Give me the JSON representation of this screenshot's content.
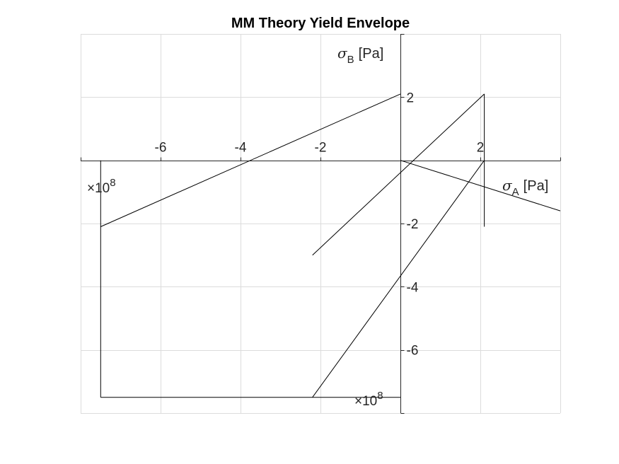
{
  "chart_data": {
    "type": "line",
    "title": "MM Theory Yield Envelope",
    "xlabel": {
      "symbol": "σ",
      "sub": "A",
      "unit": "[Pa]"
    },
    "ylabel": {
      "symbol": "σ",
      "sub": "B",
      "unit": "[Pa]"
    },
    "x_exponent": {
      "base": "×10",
      "power": "8"
    },
    "y_exponent": {
      "base": "×10",
      "power": "8"
    },
    "xlim": [
      -8,
      4
    ],
    "ylim": [
      -8,
      4
    ],
    "x_ticks": [
      -6,
      -4,
      -2,
      2
    ],
    "y_ticks": [
      2,
      -2,
      -4,
      -6
    ],
    "grid": true,
    "scale": 100000000,
    "series": [
      {
        "x": [
          -7.5,
          0
        ],
        "y": [
          -2.1,
          2.1
        ]
      },
      {
        "x": [
          -2.2,
          2.1
        ],
        "y": [
          -3.0,
          2.1
        ]
      },
      {
        "x": [
          0,
          4
        ],
        "y": [
          0,
          -1.6
        ]
      },
      {
        "x": [
          -7.5,
          -7.5
        ],
        "y": [
          0,
          -7.5
        ]
      },
      {
        "x": [
          -7.5,
          0
        ],
        "y": [
          -7.5,
          -7.5
        ]
      },
      {
        "x": [
          -2.2,
          2.1
        ],
        "y": [
          -7.5,
          0
        ]
      },
      {
        "x": [
          0,
          0
        ],
        "y": [
          -3.75,
          -3.75
        ]
      },
      {
        "x": [
          2.1,
          2.1
        ],
        "y": [
          2.1,
          -2.1
        ]
      }
    ]
  }
}
